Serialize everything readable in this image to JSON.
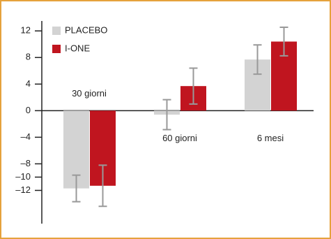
{
  "chart_data": {
    "type": "bar",
    "categories": [
      "30 giorni",
      "60 giorni",
      "6 mesi"
    ],
    "series": [
      {
        "name": "PLACEBO",
        "color": "#d3d3d3",
        "values": [
          -11.7,
          -0.6,
          7.7
        ],
        "errors": [
          2,
          2.25,
          2.2
        ]
      },
      {
        "name": "I-ONE",
        "color": "#c0151f",
        "values": [
          -11.3,
          3.7,
          10.4
        ],
        "errors": [
          3.1,
          2.7,
          2.15
        ]
      }
    ],
    "ylim": [
      -17,
      13.5
    ],
    "yticks": [
      12,
      8,
      4,
      0,
      {
        "value": -4,
        "label": "–4"
      },
      {
        "value": -8,
        "label": "–8"
      },
      {
        "value": -12,
        "label": "–12"
      },
      {
        "value": -10,
        "label": "–10"
      }
    ],
    "grid": false,
    "legend": "top-left"
  }
}
